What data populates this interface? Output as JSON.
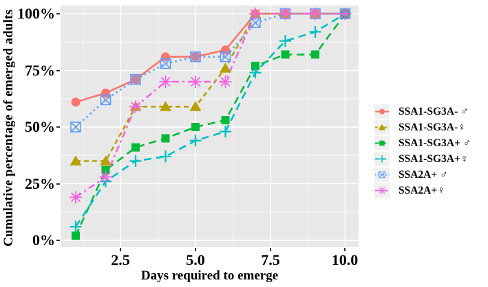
{
  "chart_data": {
    "type": "line",
    "title": "",
    "xlabel": "Days required to emerge",
    "ylabel": "Cumulative percentage of emerged adults",
    "x": [
      1,
      2,
      3,
      4,
      5,
      6,
      7,
      8,
      9,
      10
    ],
    "xlim": [
      0.5,
      10.45
    ],
    "ylim": [
      0,
      100
    ],
    "grid": true,
    "panel_background": "#e8e8e8",
    "gridline_color": "#ffffff",
    "legend_position": "right",
    "x_tick_labels": [
      "2.5",
      "5.0",
      "7.5",
      "10.0"
    ],
    "x_tick_values": [
      2.5,
      5.0,
      7.5,
      10.0
    ],
    "y_tick_labels": [
      "100%",
      "75%",
      "50%",
      "25%",
      "0%"
    ],
    "y_tick_values": [
      100,
      75,
      50,
      25,
      0
    ],
    "series": [
      {
        "name": "SSA1-SG3A- ♂",
        "color": "#F8766D",
        "marker": "circle",
        "linestyle": "solid",
        "values": [
          61,
          65,
          71,
          81,
          81,
          84,
          100,
          100,
          100,
          100
        ]
      },
      {
        "name": "SSA1-SG3A-♀",
        "color": "#B79F00",
        "marker": "triangle",
        "linestyle": "dashed",
        "values": [
          35,
          35,
          59,
          59,
          59,
          76,
          100,
          100,
          100,
          100
        ]
      },
      {
        "name": "SSA1-SG3A+ ♂",
        "color": "#00BA38",
        "marker": "square",
        "linestyle": "longdash",
        "values": [
          2,
          31,
          41,
          45,
          50,
          53,
          77,
          82,
          82,
          100
        ]
      },
      {
        "name": "SSA1-SG3A+♀",
        "color": "#00BFC4",
        "marker": "plus",
        "linestyle": "longdash",
        "values": [
          6,
          26,
          35,
          37,
          44,
          48,
          74,
          88,
          92,
          100
        ]
      },
      {
        "name": "SSA2A+ ♂",
        "color": "#619CFF",
        "marker": "square-cross",
        "linestyle": "dotted",
        "values": [
          50,
          62,
          71,
          78,
          81,
          81,
          96,
          100,
          100,
          100
        ]
      },
      {
        "name": "SSA2A+♀",
        "color": "#F564E3",
        "marker": "asterisk",
        "linestyle": "dashdot",
        "values": [
          19,
          28,
          59,
          70,
          70,
          70,
          100,
          100,
          100,
          100
        ]
      }
    ]
  }
}
